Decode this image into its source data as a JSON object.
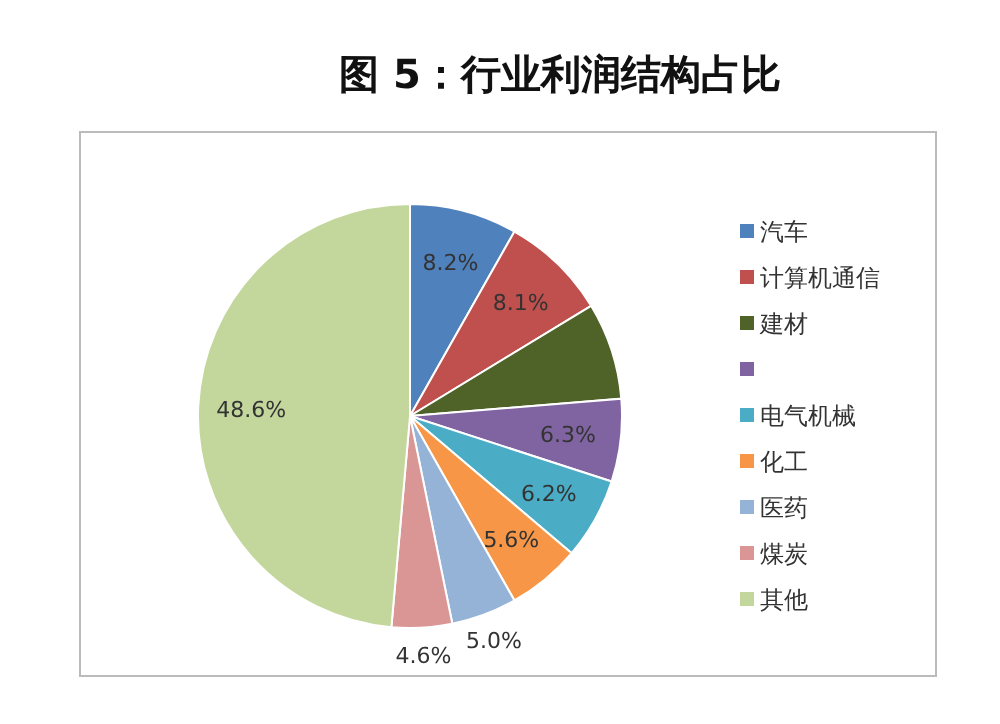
{
  "chart_data": {
    "type": "pie",
    "title": "图 5：行业利润结构占比",
    "categories": [
      "汽车",
      "计算机通信",
      "建材",
      null,
      "电气机械",
      "化工",
      "医药",
      "煤炭",
      "其他"
    ],
    "values": [
      8.2,
      8.1,
      7.4,
      6.3,
      6.2,
      5.6,
      5.0,
      4.6,
      48.6
    ],
    "colors": [
      "#4f81bd",
      "#c0504d",
      "#4f6228",
      "#8064a2",
      "#4bacc6",
      "#f79646",
      "#95b3d7",
      "#d99694",
      "#c3d69b"
    ],
    "value_labels": [
      "8.2%",
      "8.1%",
      null,
      "6.3%",
      "6.2%",
      "5.6%",
      "5.0%",
      "4.6%",
      "48.6%"
    ],
    "legend": "right"
  }
}
